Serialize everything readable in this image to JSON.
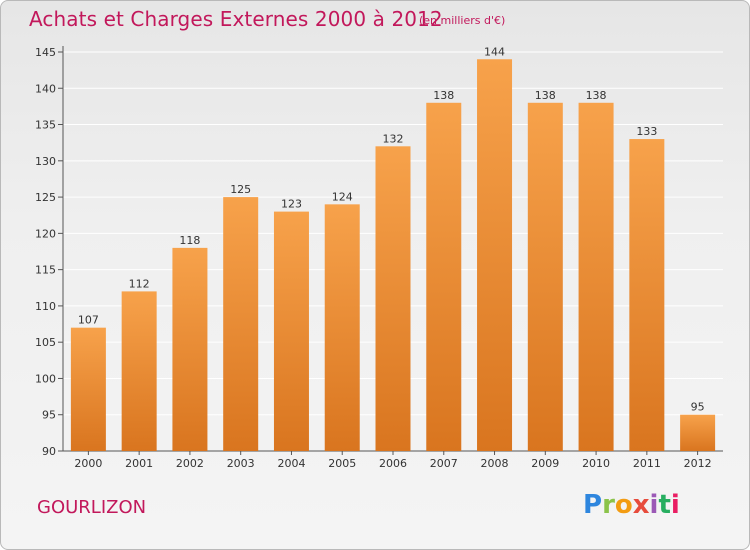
{
  "header": {
    "title": "Achats et Charges Externes 2000 à 2012",
    "subtitle": "(en milliers d'€)"
  },
  "footer": {
    "place": "GOURLIZON",
    "brand": "Proxiti"
  },
  "colors": {
    "bar_top": "#f7a24b",
    "bar_bottom": "#d9751f",
    "grid": "#ffffff",
    "title": "#c2185b"
  },
  "chart_data": {
    "type": "bar",
    "title": "Achats et Charges Externes 2000 à 2012",
    "subtitle": "(en milliers d'€)",
    "xlabel": "",
    "ylabel": "",
    "categories": [
      "2000",
      "2001",
      "2002",
      "2003",
      "2004",
      "2005",
      "2006",
      "2007",
      "2008",
      "2009",
      "2010",
      "2011",
      "2012"
    ],
    "values": [
      107,
      112,
      118,
      125,
      123,
      124,
      132,
      138,
      144,
      138,
      138,
      133,
      95
    ],
    "ylim": [
      90,
      145
    ],
    "yticks": [
      90,
      95,
      100,
      105,
      110,
      115,
      120,
      125,
      130,
      135,
      140,
      145
    ],
    "grid": true,
    "legend": "none"
  }
}
